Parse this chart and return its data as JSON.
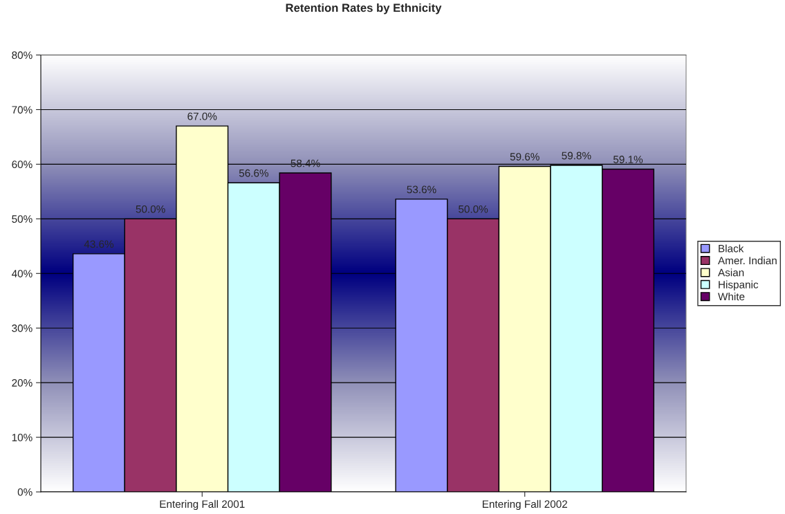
{
  "chart_data": {
    "type": "bar",
    "title": "Retention Rates by Ethnicity",
    "categories": [
      "Entering Fall 2001",
      "Entering Fall 2002"
    ],
    "series": [
      {
        "name": "Black",
        "color": "#9999ff",
        "values": [
          43.6,
          53.6
        ]
      },
      {
        "name": "Amer. Indian",
        "color": "#993366",
        "values": [
          50.0,
          50.0
        ]
      },
      {
        "name": "Asian",
        "color": "#ffffcc",
        "values": [
          67.0,
          59.6
        ]
      },
      {
        "name": "Hispanic",
        "color": "#ccffff",
        "values": [
          56.6,
          59.8
        ]
      },
      {
        "name": "White",
        "color": "#660066",
        "values": [
          58.4,
          59.1
        ]
      }
    ],
    "ylim": [
      0,
      80
    ],
    "yticks": [
      {
        "value": 0,
        "label": "0%"
      },
      {
        "value": 10,
        "label": "10%"
      },
      {
        "value": 20,
        "label": "20%"
      },
      {
        "value": 30,
        "label": "30%"
      },
      {
        "value": 40,
        "label": "40%"
      },
      {
        "value": 50,
        "label": "50%"
      },
      {
        "value": 60,
        "label": "60%"
      },
      {
        "value": 70,
        "label": "70%"
      },
      {
        "value": 80,
        "label": "80%"
      }
    ],
    "value_labels": [
      [
        "43.6%",
        "53.6%"
      ],
      [
        "50.0%",
        "50.0%"
      ],
      [
        "67.0%",
        "59.6%"
      ],
      [
        "56.6%",
        "59.8%"
      ],
      [
        "58.4%",
        "59.1%"
      ]
    ],
    "grid": "y",
    "legend": "right"
  }
}
